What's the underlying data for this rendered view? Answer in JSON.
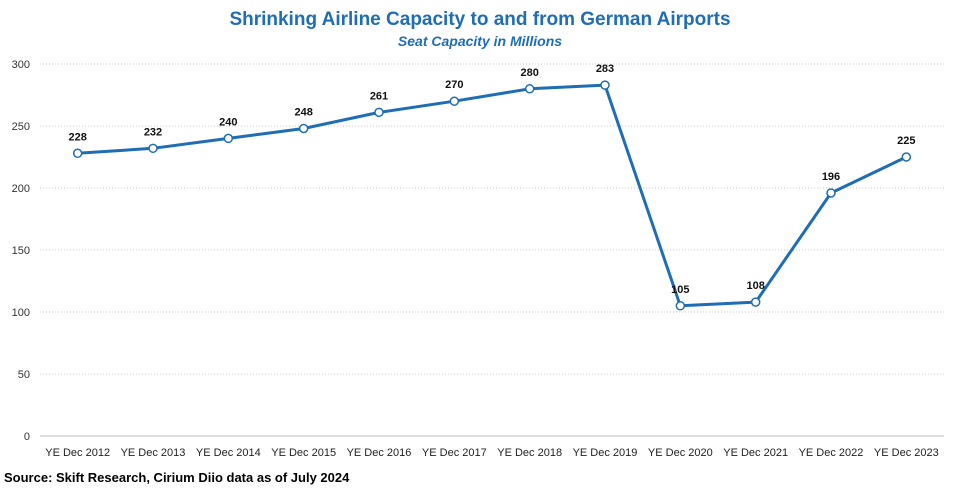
{
  "chart_data": {
    "type": "line",
    "title": "Shrinking Airline Capacity to and from German Airports",
    "subtitle": "Seat Capacity in Millions",
    "xlabel": "",
    "ylabel": "",
    "categories": [
      "YE Dec 2012",
      "YE Dec 2013",
      "YE Dec 2014",
      "YE Dec 2015",
      "YE Dec 2016",
      "YE Dec 2017",
      "YE Dec 2018",
      "YE Dec 2019",
      "YE Dec 2020",
      "YE Dec 2021",
      "YE Dec 2022",
      "YE Dec 2023"
    ],
    "series": [
      {
        "values": [
          228,
          232,
          240,
          248,
          261,
          270,
          280,
          283,
          105,
          108,
          196,
          225
        ],
        "color": "#1f6db4"
      }
    ],
    "ylim": [
      0,
      300
    ],
    "yticks": [
      0,
      50,
      100,
      150,
      200,
      250,
      300
    ],
    "grid": true,
    "gridline_style": "dotted",
    "data_labels": true,
    "legend": "none"
  },
  "source": "Source: Skift Research, Cirium Diio data as of July 2024"
}
